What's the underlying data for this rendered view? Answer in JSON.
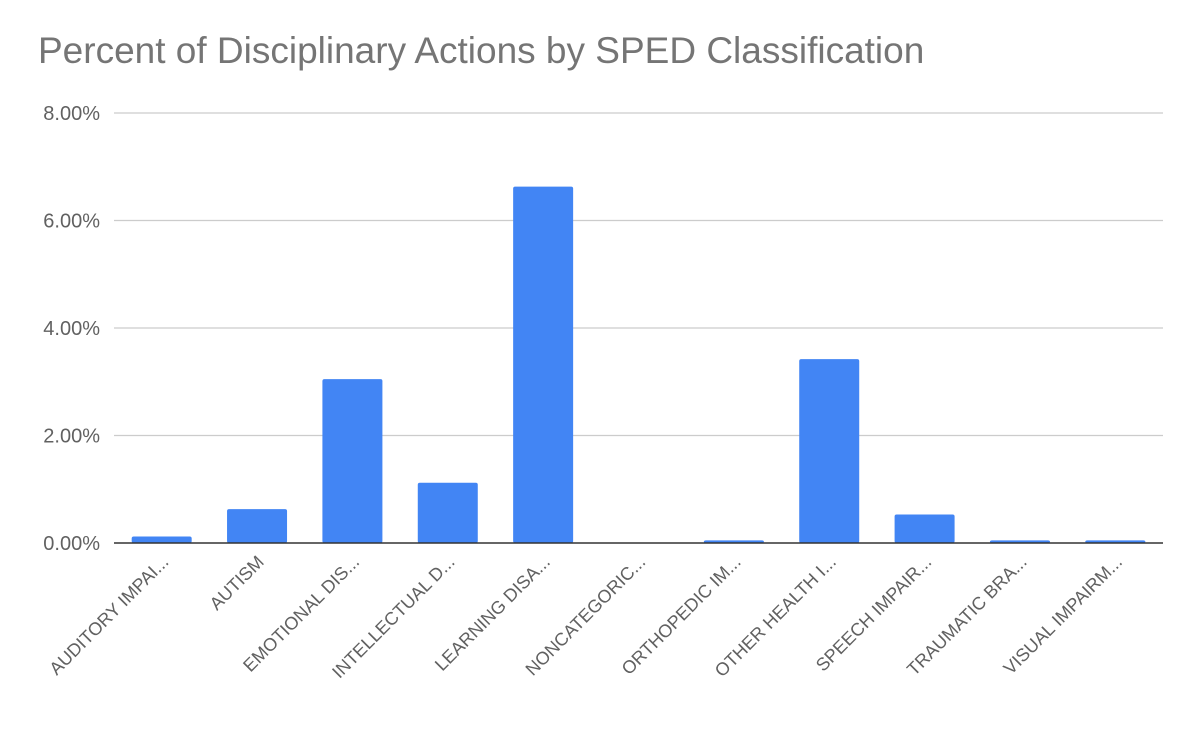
{
  "chart_data": {
    "type": "bar",
    "title": "Percent of Disciplinary Actions by SPED Classification",
    "xlabel": "",
    "ylabel": "",
    "ylim": [
      0,
      8
    ],
    "yticks": [
      "0.00%",
      "2.00%",
      "4.00%",
      "6.00%",
      "8.00%"
    ],
    "grid": true,
    "legend": "none",
    "bar_color": "#4285f4",
    "categories": [
      "AUDITORY IMPAI...",
      "AUTISM",
      "EMOTIONAL DIS...",
      "INTELLECTUAL D...",
      "LEARNING DISA...",
      "NONCATEGORIC...",
      "ORTHOPEDIC IM...",
      "OTHER HEALTH I...",
      "SPEECH IMPAIR...",
      "TRAUMATIC BRA...",
      "VISUAL IMPAIRM..."
    ],
    "values": [
      0.12,
      0.63,
      3.05,
      1.12,
      6.63,
      0.0,
      0.05,
      3.42,
      0.53,
      0.05,
      0.05
    ]
  }
}
